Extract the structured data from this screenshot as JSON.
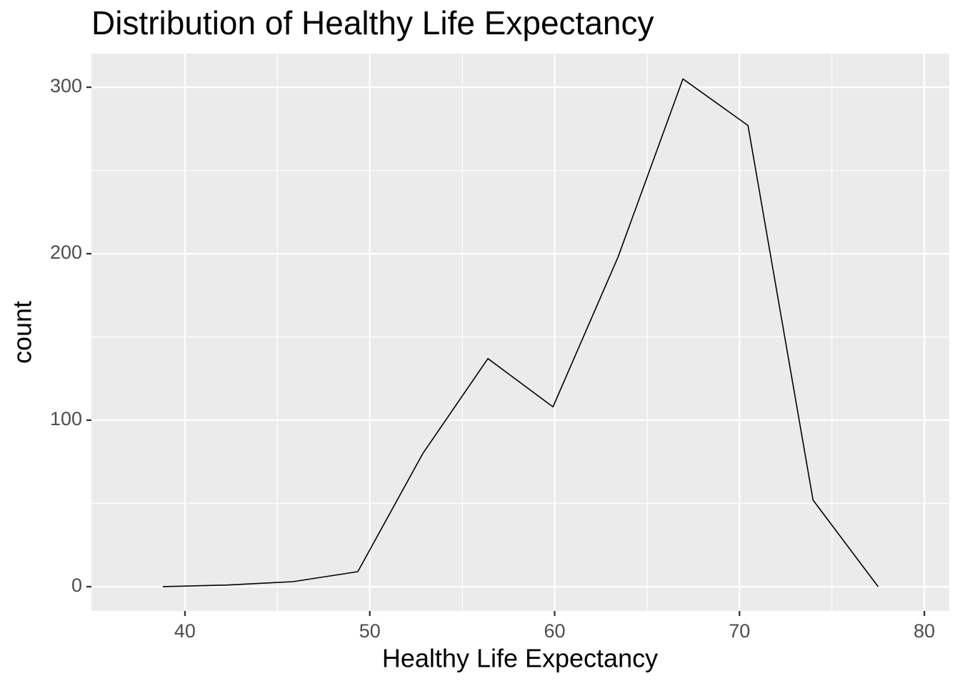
{
  "chart_data": {
    "type": "line",
    "title": "Distribution of Healthy Life Expectancy",
    "x_label": "Healthy Life Expectancy",
    "y_label": "count",
    "x": [
      38.8,
      42.32,
      45.84,
      49.35,
      52.87,
      56.39,
      59.91,
      63.43,
      66.94,
      70.46,
      73.98,
      77.5
    ],
    "series": [
      {
        "color": "#000000",
        "values": [
          0,
          1,
          3,
          9,
          80,
          137,
          108,
          198,
          305,
          277,
          52,
          0
        ]
      }
    ],
    "xlim": [
      34.94,
      81.35
    ],
    "ylim": [
      -14.6,
      320.2
    ],
    "xticks": [
      40,
      50,
      60,
      70,
      80
    ],
    "yticks": [
      0,
      100,
      200,
      300
    ],
    "grid": true
  }
}
